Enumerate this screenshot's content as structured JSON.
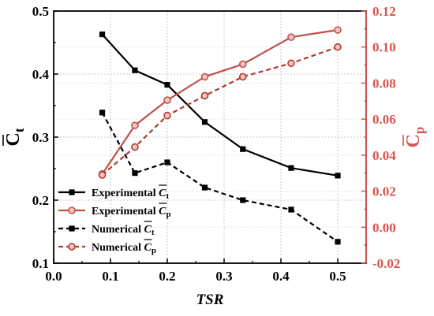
{
  "chart_data": {
    "type": "line",
    "xlabel": "TSR",
    "ylabel_left": {
      "symbol": "C",
      "sub": "t"
    },
    "ylabel_right": {
      "symbol": "C",
      "sub": "p"
    },
    "x_ticks": [
      "0.0",
      "0.1",
      "0.2",
      "0.3",
      "0.4",
      "0.5"
    ],
    "y_left_ticks": [
      "0.1",
      "0.2",
      "0.3",
      "0.4",
      "0.5"
    ],
    "y_right_ticks": [
      "-0.02",
      "0.00",
      "0.02",
      "0.04",
      "0.06",
      "0.08",
      "0.10",
      "0.12"
    ],
    "xlim": [
      0,
      0.55
    ],
    "ylim_left": [
      0.1,
      0.5
    ],
    "ylim_right": [
      -0.02,
      0.12
    ],
    "grid": true,
    "legend_position": "bottom-left",
    "right_axis_color": "#d9534f",
    "x": [
      0.0855,
      0.143,
      0.2,
      0.266,
      0.333,
      0.418,
      0.5
    ],
    "series": [
      {
        "label": "Experimental",
        "sub": "t",
        "axis": "left",
        "color": "#000000",
        "dash": false,
        "marker": "square",
        "values": [
          0.463,
          0.406,
          0.383,
          0.324,
          0.281,
          0.251,
          0.239
        ]
      },
      {
        "label": "Experimental",
        "sub": "p",
        "axis": "right",
        "color": "#c0504d",
        "dash": false,
        "marker": "circle",
        "values": [
          0.0295,
          0.0565,
          0.0705,
          0.0835,
          0.0905,
          0.1055,
          0.1095
        ]
      },
      {
        "label": "Numerical",
        "sub": "t",
        "axis": "left",
        "color": "#000000",
        "dash": true,
        "marker": "square",
        "values": [
          0.339,
          0.243,
          0.26,
          0.22,
          0.2,
          0.185,
          0.134
        ]
      },
      {
        "label": "Numerical",
        "sub": "p",
        "axis": "right",
        "color": "#b03a2e",
        "dash": true,
        "marker": "circle",
        "values": [
          0.029,
          0.0445,
          0.062,
          0.073,
          0.0835,
          0.091,
          0.1
        ]
      }
    ]
  }
}
